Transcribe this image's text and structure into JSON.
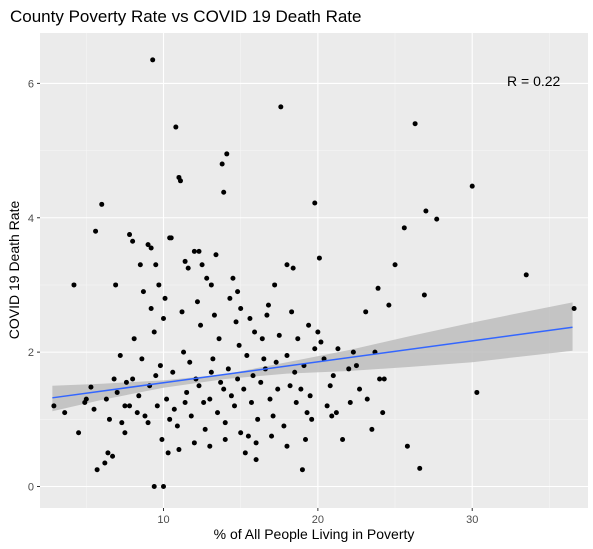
{
  "chart_data": {
    "type": "scatter",
    "title": "County Poverty Rate vs COVID 19 Death Rate",
    "xlabel": "% of All People Living in Poverty",
    "ylabel": "COVID 19 Death Rate",
    "xlim": [
      2.0,
      37.5
    ],
    "ylim": [
      -0.32,
      6.75
    ],
    "x_ticks": [
      10,
      20,
      30
    ],
    "y_ticks": [
      0,
      2,
      4,
      6
    ],
    "grid": true,
    "background": "#ebebeb",
    "annotation": "R =  0.22",
    "point_color": "#000000",
    "trend_color": "#3366ff",
    "band_color": "#bdbdbd",
    "trend_line": {
      "x": [
        2.8,
        36.5
      ],
      "y": [
        1.32,
        2.37
      ]
    },
    "confidence_band": {
      "x": [
        2.8,
        6,
        10,
        14,
        18,
        22,
        26,
        30,
        33,
        36.5
      ],
      "lower": [
        1.12,
        1.29,
        1.47,
        1.6,
        1.68,
        1.72,
        1.78,
        1.85,
        1.93,
        2.02
      ],
      "upper": [
        1.5,
        1.53,
        1.58,
        1.67,
        1.85,
        2.03,
        2.24,
        2.44,
        2.58,
        2.74
      ]
    },
    "points": [
      [
        2.9,
        1.2
      ],
      [
        3.6,
        1.1
      ],
      [
        4.2,
        3.0
      ],
      [
        4.5,
        0.8
      ],
      [
        5.0,
        1.3
      ],
      [
        5.3,
        1.48
      ],
      [
        5.6,
        3.8
      ],
      [
        5.7,
        0.25
      ],
      [
        6.0,
        4.2
      ],
      [
        6.2,
        0.35
      ],
      [
        6.4,
        0.5
      ],
      [
        6.7,
        0.45
      ],
      [
        6.9,
        3.0
      ],
      [
        7.3,
        0.95
      ],
      [
        7.5,
        1.2
      ],
      [
        7.8,
        3.75
      ],
      [
        8.0,
        3.65
      ],
      [
        8.5,
        3.3
      ],
      [
        8.7,
        2.9
      ],
      [
        9.0,
        3.6
      ],
      [
        9.2,
        3.55
      ],
      [
        9.3,
        6.35
      ],
      [
        9.5,
        3.3
      ],
      [
        9.7,
        3.0
      ],
      [
        10.0,
        2.5
      ],
      [
        10.3,
        0.5
      ],
      [
        10.4,
        3.7
      ],
      [
        10.5,
        3.7
      ],
      [
        10.8,
        5.35
      ],
      [
        11.0,
        4.6
      ],
      [
        11.1,
        4.55
      ],
      [
        11.4,
        3.35
      ],
      [
        11.6,
        3.25
      ],
      [
        12.0,
        3.5
      ],
      [
        12.3,
        3.5
      ],
      [
        12.5,
        3.3
      ],
      [
        12.8,
        3.1
      ],
      [
        13.1,
        3.0
      ],
      [
        13.4,
        3.45
      ],
      [
        13.8,
        4.8
      ],
      [
        13.9,
        4.38
      ],
      [
        14.1,
        4.95
      ],
      [
        14.3,
        2.8
      ],
      [
        14.5,
        3.1
      ],
      [
        14.8,
        2.9
      ],
      [
        15.0,
        2.65
      ],
      [
        15.3,
        0.5
      ],
      [
        15.6,
        2.5
      ],
      [
        16.0,
        0.4
      ],
      [
        16.4,
        2.2
      ],
      [
        16.8,
        2.7
      ],
      [
        17.2,
        3.0
      ],
      [
        17.6,
        5.65
      ],
      [
        18.0,
        3.3
      ],
      [
        18.4,
        3.25
      ],
      [
        18.7,
        2.2
      ],
      [
        19.0,
        0.25
      ],
      [
        19.3,
        1.1
      ],
      [
        19.8,
        4.22
      ],
      [
        20.1,
        3.4
      ],
      [
        20.4,
        1.9
      ],
      [
        20.8,
        1.5
      ],
      [
        21.2,
        1.1
      ],
      [
        21.6,
        0.7
      ],
      [
        22.0,
        1.75
      ],
      [
        22.3,
        2.0
      ],
      [
        22.7,
        1.45
      ],
      [
        23.1,
        2.6
      ],
      [
        23.5,
        0.85
      ],
      [
        23.9,
        2.95
      ],
      [
        24.2,
        1.1
      ],
      [
        24.6,
        2.7
      ],
      [
        25.0,
        3.3
      ],
      [
        25.6,
        3.85
      ],
      [
        25.8,
        0.6
      ],
      [
        26.3,
        5.4
      ],
      [
        26.6,
        0.27
      ],
      [
        26.9,
        2.85
      ],
      [
        27.0,
        4.1
      ],
      [
        27.7,
        3.98
      ],
      [
        30.0,
        4.47
      ],
      [
        30.3,
        1.4
      ],
      [
        33.5,
        3.15
      ],
      [
        36.6,
        2.65
      ],
      [
        6.5,
        1.0
      ],
      [
        7.0,
        1.4
      ],
      [
        7.5,
        0.8
      ],
      [
        8.0,
        1.6
      ],
      [
        8.3,
        1.1
      ],
      [
        8.6,
        1.9
      ],
      [
        9.0,
        0.95
      ],
      [
        9.1,
        1.5
      ],
      [
        9.4,
        2.3
      ],
      [
        9.6,
        1.2
      ],
      [
        9.9,
        0.7
      ],
      [
        10.2,
        1.3
      ],
      [
        10.6,
        1.7
      ],
      [
        10.9,
        0.9
      ],
      [
        11.3,
        2.0
      ],
      [
        11.5,
        1.4
      ],
      [
        11.8,
        1.05
      ],
      [
        12.1,
        1.6
      ],
      [
        12.4,
        2.4
      ],
      [
        12.7,
        0.85
      ],
      [
        13.0,
        1.3
      ],
      [
        13.2,
        1.9
      ],
      [
        13.5,
        1.1
      ],
      [
        13.7,
        1.55
      ],
      [
        14.0,
        0.95
      ],
      [
        14.2,
        1.75
      ],
      [
        14.6,
        1.2
      ],
      [
        14.9,
        2.1
      ],
      [
        15.2,
        1.45
      ],
      [
        15.5,
        0.75
      ],
      [
        15.8,
        1.65
      ],
      [
        16.1,
        1.0
      ],
      [
        16.5,
        1.9
      ],
      [
        16.9,
        1.3
      ],
      [
        17.3,
        1.85
      ],
      [
        17.8,
        0.9
      ],
      [
        18.2,
        1.5
      ],
      [
        18.6,
        1.25
      ],
      [
        19.1,
        1.8
      ],
      [
        19.6,
        1.0
      ],
      [
        20.0,
        2.3
      ],
      [
        20.6,
        1.2
      ],
      [
        21.3,
        2.05
      ],
      [
        22.5,
        1.8
      ],
      [
        23.2,
        1.3
      ],
      [
        24.0,
        1.6
      ],
      [
        24.3,
        1.6
      ],
      [
        7.8,
        1.2
      ],
      [
        8.8,
        1.05
      ],
      [
        9.8,
        1.8
      ],
      [
        10.7,
        1.15
      ],
      [
        11.7,
        1.85
      ],
      [
        12.6,
        1.25
      ],
      [
        13.6,
        2.2
      ],
      [
        14.4,
        1.35
      ],
      [
        15.4,
        1.95
      ],
      [
        16.3,
        1.55
      ],
      [
        17.1,
        1.05
      ],
      [
        18.0,
        1.95
      ],
      [
        18.9,
        1.45
      ],
      [
        19.8,
        2.05
      ],
      [
        21.0,
        1.65
      ],
      [
        22.1,
        1.25
      ],
      [
        23.7,
        2.0
      ],
      [
        6.8,
        1.6
      ],
      [
        7.2,
        1.95
      ],
      [
        8.1,
        2.2
      ],
      [
        9.2,
        2.65
      ],
      [
        10.1,
        2.8
      ],
      [
        11.2,
        2.6
      ],
      [
        12.2,
        2.75
      ],
      [
        13.3,
        2.55
      ],
      [
        14.7,
        2.45
      ],
      [
        15.9,
        2.3
      ],
      [
        16.7,
        2.55
      ],
      [
        17.5,
        2.25
      ],
      [
        18.3,
        2.6
      ],
      [
        19.4,
        2.4
      ],
      [
        20.2,
        2.15
      ],
      [
        11.0,
        0.55
      ],
      [
        12.0,
        0.65
      ],
      [
        13.0,
        0.6
      ],
      [
        14.0,
        0.7
      ],
      [
        15.0,
        0.8
      ],
      [
        16.0,
        0.65
      ],
      [
        17.0,
        0.75
      ],
      [
        18.0,
        0.6
      ],
      [
        19.2,
        0.7
      ],
      [
        9.4,
        0.0
      ],
      [
        10.0,
        0.0
      ],
      [
        4.9,
        1.25
      ],
      [
        5.5,
        1.15
      ],
      [
        6.3,
        1.3
      ],
      [
        7.6,
        1.55
      ],
      [
        8.4,
        1.35
      ],
      [
        9.5,
        1.65
      ],
      [
        10.4,
        1.0
      ],
      [
        11.4,
        1.25
      ],
      [
        12.3,
        1.5
      ],
      [
        13.1,
        1.7
      ],
      [
        13.9,
        1.45
      ],
      [
        14.8,
        1.6
      ],
      [
        15.7,
        1.25
      ],
      [
        16.6,
        1.75
      ],
      [
        17.4,
        1.45
      ],
      [
        18.5,
        1.7
      ],
      [
        19.5,
        1.35
      ],
      [
        20.9,
        1.05
      ]
    ]
  }
}
